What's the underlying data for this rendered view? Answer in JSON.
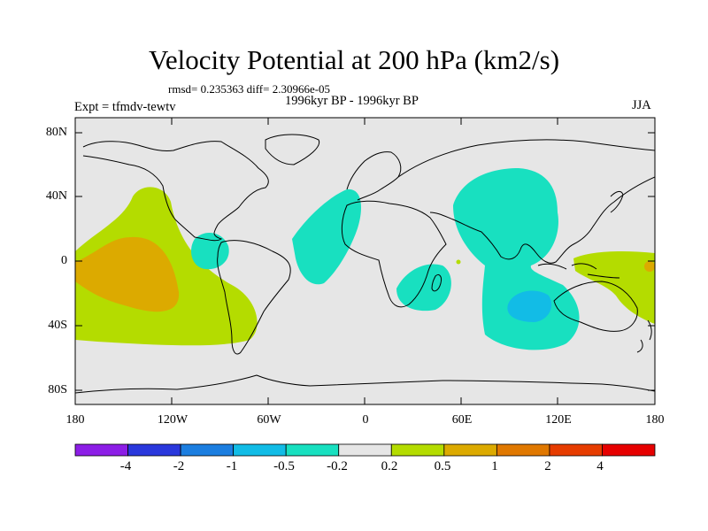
{
  "figure": {
    "title": "Velocity Potential at 200 hPa (km2/s)",
    "stats": "rmsd= 0.235363 diff= 2.30966e-05",
    "subtitle": "1996kyr BP - 1996kyr BP",
    "experiment": "Expt = tfmdv-tewtv",
    "season": "JJA"
  },
  "axes": {
    "lat_ticks": [
      "80N",
      "40N",
      "0",
      "40S",
      "80S"
    ],
    "lon_ticks": [
      "180",
      "120W",
      "60W",
      "0",
      "60E",
      "120E",
      "180"
    ]
  },
  "colorbar": {
    "labels": [
      "-4",
      "-2",
      "-1",
      "-0.5",
      "-0.2",
      "0.2",
      "0.5",
      "1",
      "2",
      "4"
    ],
    "colors": [
      "#8c1ee6",
      "#2a38dc",
      "#1c7ee0",
      "#12bce6",
      "#18e0c0",
      "#e6e6e6",
      "#b4dc00",
      "#dcaa00",
      "#e07800",
      "#e63c00",
      "#e60000"
    ]
  },
  "chart_data": {
    "type": "map",
    "title": "Velocity Potential at 200 hPa (km2/s)",
    "projection": "cylindrical equidistant",
    "lon_range": [
      -180,
      180
    ],
    "lat_range": [
      -90,
      90
    ],
    "levels": [
      -4,
      -2,
      -1,
      -0.5,
      -0.2,
      0.2,
      0.5,
      1,
      2,
      4
    ],
    "regions": [
      {
        "name": "east pacific positive",
        "range": "0.2 to 0.5",
        "color": "#b4dc00"
      },
      {
        "name": "central pacific positive core",
        "range": "0.5 to 1",
        "color": "#dcaa00"
      },
      {
        "name": "tropical atlantic negative",
        "range": "-0.5 to -0.2",
        "color": "#18e0c0"
      },
      {
        "name": "eastern hemisphere negative",
        "range": "-0.5 to -0.2",
        "color": "#18e0c0"
      },
      {
        "name": "south indian ocean negative core",
        "range": "-1 to -0.5",
        "color": "#12bce6"
      },
      {
        "name": "west pacific positive",
        "range": "0.2 to 0.5",
        "color": "#b4dc00"
      }
    ]
  }
}
